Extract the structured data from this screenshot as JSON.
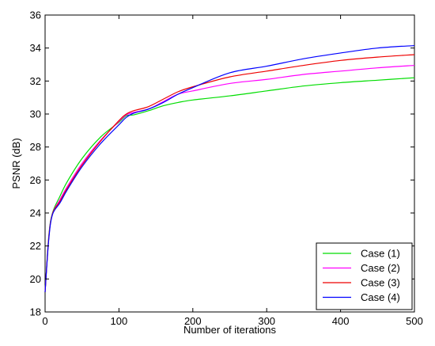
{
  "chart_data": {
    "type": "line",
    "xlabel": "Number of iterations",
    "ylabel": "PSNR (dB)",
    "xlim": [
      0,
      500
    ],
    "ylim": [
      18,
      36
    ],
    "xticks": [
      0,
      100,
      200,
      300,
      400,
      500
    ],
    "yticks": [
      18,
      20,
      22,
      24,
      26,
      28,
      30,
      32,
      34,
      36
    ],
    "grid": false,
    "legend_position": "bottom-right",
    "series": [
      {
        "name": "Case (1)",
        "color": "#00dd00",
        "x": [
          0,
          5,
          10,
          20,
          30,
          50,
          75,
          100,
          110,
          120,
          140,
          160,
          180,
          200,
          250,
          300,
          350,
          400,
          450,
          500
        ],
        "y": [
          19.2,
          22.6,
          24.0,
          25.0,
          25.9,
          27.3,
          28.6,
          29.5,
          29.9,
          29.95,
          30.2,
          30.5,
          30.7,
          30.85,
          31.1,
          31.4,
          31.7,
          31.9,
          32.05,
          32.2
        ]
      },
      {
        "name": "Case (2)",
        "color": "#ff00ff",
        "x": [
          0,
          5,
          10,
          20,
          30,
          50,
          75,
          100,
          110,
          120,
          140,
          160,
          180,
          200,
          250,
          300,
          350,
          400,
          450,
          500
        ],
        "y": [
          19.2,
          22.5,
          23.95,
          24.8,
          25.6,
          27.0,
          28.4,
          29.55,
          29.95,
          30.1,
          30.3,
          30.75,
          31.2,
          31.4,
          31.85,
          32.1,
          32.4,
          32.6,
          32.8,
          32.95
        ]
      },
      {
        "name": "Case (3)",
        "color": "#ee0000",
        "x": [
          0,
          5,
          10,
          20,
          30,
          50,
          75,
          100,
          110,
          120,
          140,
          160,
          180,
          200,
          250,
          300,
          350,
          400,
          450,
          500
        ],
        "y": [
          19.2,
          22.5,
          23.95,
          24.7,
          25.5,
          26.9,
          28.35,
          29.6,
          30.0,
          30.2,
          30.45,
          30.9,
          31.35,
          31.65,
          32.25,
          32.6,
          32.95,
          33.25,
          33.45,
          33.6
        ]
      },
      {
        "name": "Case (4)",
        "color": "#0000ff",
        "x": [
          0,
          5,
          10,
          20,
          30,
          50,
          75,
          100,
          110,
          120,
          140,
          160,
          180,
          200,
          250,
          300,
          350,
          400,
          450,
          500
        ],
        "y": [
          19.2,
          22.4,
          23.9,
          24.6,
          25.4,
          26.8,
          28.2,
          29.35,
          29.8,
          30.05,
          30.3,
          30.7,
          31.2,
          31.6,
          32.5,
          32.9,
          33.35,
          33.7,
          34.0,
          34.15
        ]
      }
    ]
  }
}
